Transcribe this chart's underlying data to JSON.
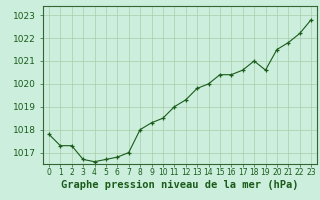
{
  "x": [
    0,
    1,
    2,
    3,
    4,
    5,
    6,
    7,
    8,
    9,
    10,
    11,
    12,
    13,
    14,
    15,
    16,
    17,
    18,
    19,
    20,
    21,
    22,
    23
  ],
  "y": [
    1017.8,
    1017.3,
    1017.3,
    1016.7,
    1016.6,
    1016.7,
    1016.8,
    1017.0,
    1018.0,
    1018.3,
    1018.5,
    1019.0,
    1019.3,
    1019.8,
    1020.0,
    1020.4,
    1020.4,
    1020.6,
    1021.0,
    1020.6,
    1021.5,
    1021.8,
    1022.2,
    1022.8
  ],
  "ylim": [
    1016.5,
    1023.4
  ],
  "yticks": [
    1017,
    1018,
    1019,
    1020,
    1021,
    1022,
    1023
  ],
  "xlim": [
    -0.5,
    23.5
  ],
  "bg_color": "#cceedd",
  "line_color": "#1a5c1a",
  "marker_color": "#1a5c1a",
  "grid_color": "#aaccaa",
  "xlabel": "Graphe pression niveau de la mer (hPa)",
  "xlabel_color": "#1a5c1a",
  "tick_color": "#1a5c1a",
  "spine_color": "#336633",
  "ytick_fontsize": 6.5,
  "xtick_fontsize": 5.5,
  "xlabel_fontsize": 7.5
}
